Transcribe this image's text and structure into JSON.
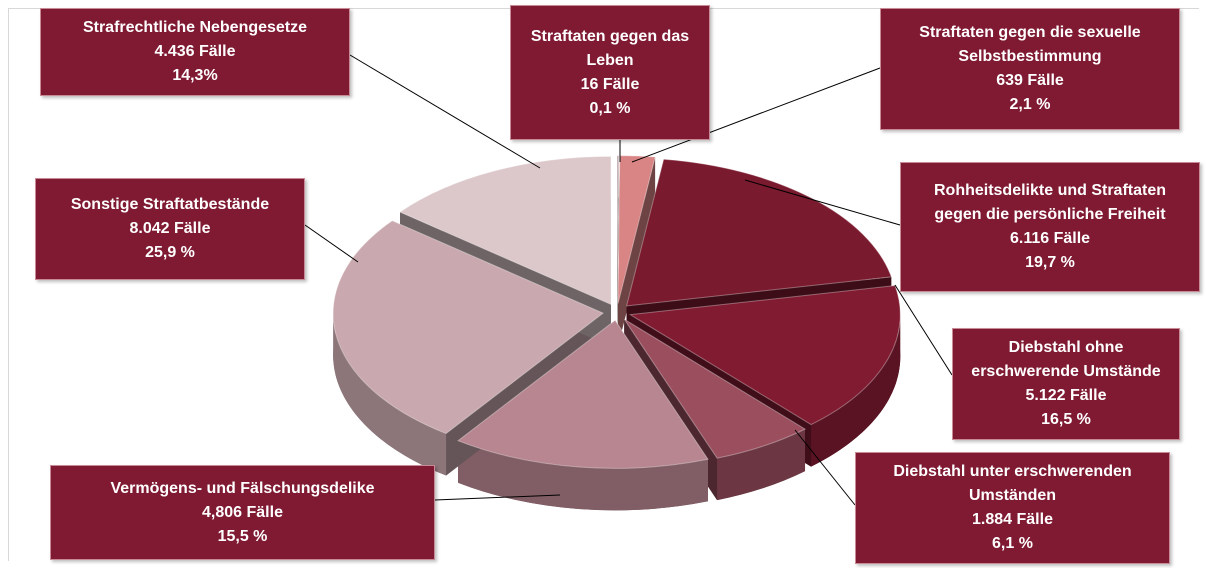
{
  "chart_data": {
    "type": "pie",
    "categories": [
      "Straftaten gegen das Leben",
      "Straftaten gegen die sexuelle Selbstbestimmung",
      "Rohheitsdelikte und Straftaten gegen die persönliche Freiheit",
      "Diebstahl ohne erschwerende Umstände",
      "Diebstahl unter erschwerenden Umständen",
      "Vermögens- und Fälschungsdelike",
      "Sonstige Straftatbestände",
      "Strafrechtliche Nebengesetze"
    ],
    "count_labels": [
      "16 Fälle",
      "639 Fälle",
      "6.116 Fälle",
      "5.122 Fälle",
      "1.884 Fälle",
      "4,806 Fälle",
      "8.042 Fälle",
      "4.436 Fälle"
    ],
    "values": [
      0.1,
      2.1,
      19.7,
      16.5,
      6.1,
      15.5,
      25.9,
      14.3
    ],
    "value_labels": [
      "0,1 %",
      "2,1 %",
      "19,7 %",
      "16,5 %",
      "6,1 %",
      "15,5 %",
      "25,9 %",
      "14,3%"
    ],
    "colors": [
      "#b8a3a6",
      "#d98585",
      "#7a1a2e",
      "#801b31",
      "#9a4e5e",
      "#b88690",
      "#c9a9af",
      "#dcc8ca"
    ]
  }
}
